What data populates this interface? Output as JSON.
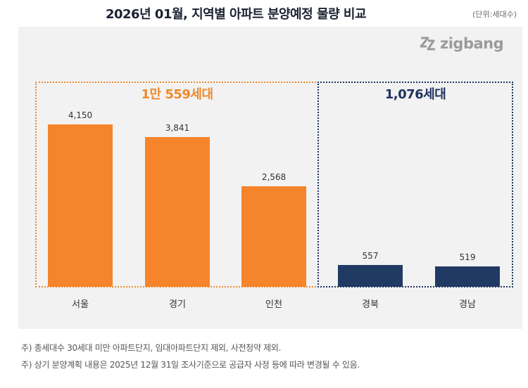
{
  "title": "2026년 01월, 지역별 아파트 분양예정 물량 비교",
  "unit_label": "(단위:세대수)",
  "logo": {
    "text": "zigbang",
    "icon": "zigbang-logo-icon"
  },
  "colors": {
    "orange": "#f5842a",
    "navy": "#213a63",
    "orange_text": "#f08a2c",
    "navy_text": "#1f3360"
  },
  "groups": [
    {
      "label": "1만 559세대",
      "color": "#f08a2c"
    },
    {
      "label": "1,076세대",
      "color": "#1f3360"
    }
  ],
  "chart_data": {
    "type": "bar",
    "title": "2026년 01월, 지역별 아파트 분양예정 물량 비교",
    "xlabel": "",
    "ylabel": "",
    "categories": [
      "서울",
      "경기",
      "인천",
      "경북",
      "경남"
    ],
    "values": [
      4150,
      3841,
      2568,
      557,
      519
    ],
    "value_labels": [
      "4,150",
      "3,841",
      "2,568",
      "557",
      "519"
    ],
    "bar_colors": [
      "#f5842a",
      "#f5842a",
      "#f5842a",
      "#213a63",
      "#213a63"
    ],
    "ylim": [
      0,
      5400
    ],
    "grid": false,
    "legend": "none"
  },
  "notes": [
    "주) 총세대수 30세대 미만 아파트단지, 임대아파트단지 제외, 사전청약 제외.",
    "주) 상기 분양계획 내용은 2025년 12월 31일 조사기준으로 공급자 사정 등에 따라 변경될 수 있음."
  ]
}
